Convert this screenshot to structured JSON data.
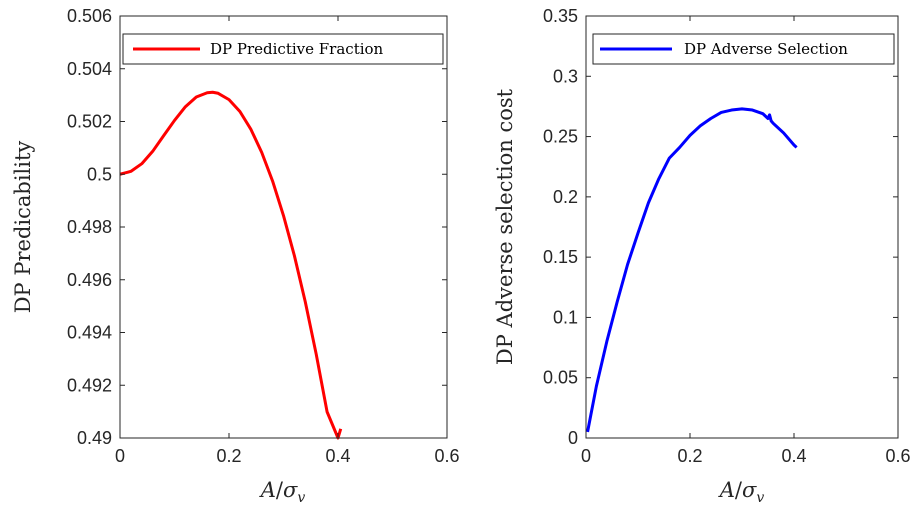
{
  "chart_data": [
    {
      "type": "line",
      "xlabel": "A/σ_v",
      "ylabel": "DP Predicability",
      "xlim": [
        0,
        0.6
      ],
      "ylim": [
        0.49,
        0.506
      ],
      "xticks": [
        0,
        0.2,
        0.4,
        0.6
      ],
      "xtick_labels": [
        "0",
        "0.2",
        "0.4",
        "0.6"
      ],
      "yticks": [
        0.49,
        0.492,
        0.494,
        0.496,
        0.498,
        0.5,
        0.502,
        0.504,
        0.506
      ],
      "ytick_labels": [
        "0.49",
        "0.492",
        "0.494",
        "0.496",
        "0.498",
        "0.5",
        "0.502",
        "0.504",
        "0.506"
      ],
      "grid": false,
      "legend": "top-right",
      "series": [
        {
          "name": "DP Predictive Fraction",
          "color": "#ff0000",
          "x": [
            0,
            0.02,
            0.04,
            0.06,
            0.08,
            0.1,
            0.12,
            0.14,
            0.16,
            0.17,
            0.18,
            0.2,
            0.22,
            0.24,
            0.26,
            0.28,
            0.3,
            0.32,
            0.34,
            0.36,
            0.38,
            0.4,
            0.405
          ],
          "y": [
            0.5,
            0.50011,
            0.5004,
            0.50087,
            0.50146,
            0.50204,
            0.50256,
            0.50293,
            0.50309,
            0.50311,
            0.50307,
            0.50283,
            0.50238,
            0.50171,
            0.50083,
            0.49974,
            0.49843,
            0.49691,
            0.49516,
            0.49318,
            0.49099,
            0.48857,
            0.49035
          ]
        }
      ]
    },
    {
      "type": "line",
      "xlabel": "A/σ_v",
      "ylabel": "DP Adverse selection cost",
      "xlim": [
        0,
        0.6
      ],
      "ylim": [
        0,
        0.35
      ],
      "xticks": [
        0,
        0.2,
        0.4,
        0.6
      ],
      "xtick_labels": [
        "0",
        "0.2",
        "0.4",
        "0.6"
      ],
      "yticks": [
        0,
        0.05,
        0.1,
        0.15,
        0.2,
        0.25,
        0.3,
        0.35
      ],
      "ytick_labels": [
        "0",
        "0.05",
        "0.1",
        "0.15",
        "0.2",
        "0.25",
        "0.3",
        "0.35"
      ],
      "grid": false,
      "legend": "top-right",
      "series": [
        {
          "name": "DP Adverse Selection",
          "color": "#0000ff",
          "x": [
            0.003,
            0.02,
            0.04,
            0.06,
            0.08,
            0.1,
            0.12,
            0.14,
            0.16,
            0.18,
            0.2,
            0.22,
            0.24,
            0.26,
            0.28,
            0.3,
            0.32,
            0.34,
            0.35,
            0.353,
            0.356,
            0.36,
            0.38,
            0.4,
            0.405
          ],
          "y": [
            0.005,
            0.043,
            0.08,
            0.113,
            0.144,
            0.17,
            0.195,
            0.215,
            0.232,
            0.241,
            0.251,
            0.259,
            0.265,
            0.27,
            0.272,
            0.273,
            0.272,
            0.269,
            0.265,
            0.268,
            0.263,
            0.261,
            0.253,
            0.243,
            0.241
          ]
        }
      ]
    }
  ]
}
